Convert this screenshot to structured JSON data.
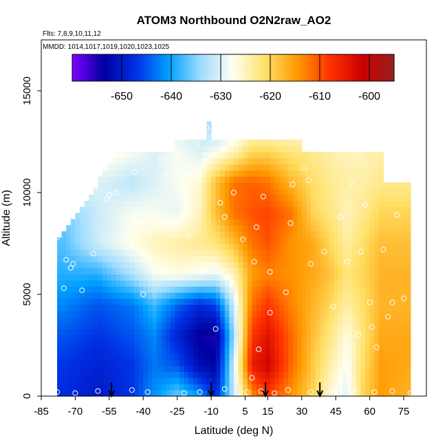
{
  "chart_data": {
    "type": "heatmap",
    "title": "ATOM3 Northbound O2N2raw_AO2",
    "flights_note": "Flts: 7,8,9,10,11,12",
    "dates_note": "MMDD: 1014,1017,1019,1020,1023,1025",
    "xlabel": "Latitude (deg N)",
    "ylabel": "Altitude (m)",
    "xlim": [
      -85,
      85
    ],
    "ylim": [
      0,
      17500
    ],
    "x_ticks": [
      "-85",
      "-70",
      "-55",
      "-40",
      "-25",
      "-10",
      "5",
      "15",
      "30",
      "45",
      "60",
      "75"
    ],
    "y_ticks": [
      "0",
      "5000",
      "10000",
      "15000"
    ],
    "colorbar": {
      "range": [
        -660,
        -595
      ],
      "tick_labels": [
        "-650",
        "-640",
        "-630",
        "-620",
        "-610",
        "-600"
      ],
      "colors": [
        "#7f00ff",
        "#0000a0",
        "#0032e6",
        "#00a0ff",
        "#9fdcff",
        "#fffff0",
        "#ffe066",
        "#ff9900",
        "#ff3300",
        "#cc0000",
        "#992020"
      ]
    },
    "vertical_profile_markers_lat": [
      -54,
      -10,
      14,
      38
    ],
    "field": {
      "lat": [
        -75,
        -60,
        -45,
        -35,
        -25,
        -15,
        -8,
        0,
        8,
        15,
        25,
        35,
        42,
        50,
        57,
        65,
        78
      ],
      "alt": [
        0,
        1500,
        3000,
        4500,
        6000,
        7500,
        9000,
        10500,
        12000,
        13500
      ],
      "values": [
        [
          -648,
          -650,
          -647,
          -641,
          -636,
          -641,
          -648,
          -632,
          -614,
          -609,
          -614,
          -620,
          -626,
          -630,
          -620,
          -615,
          -617
        ],
        [
          -647,
          -649,
          -647,
          -643,
          -645,
          -652,
          -653,
          -631,
          -605,
          -602,
          -611,
          -619,
          -624,
          -628,
          -621,
          -615,
          -616
        ],
        [
          -645,
          -647,
          -645,
          -642,
          -649,
          -654,
          -655,
          -634,
          -608,
          -604,
          -611,
          -618,
          -622,
          -627,
          -622,
          -616,
          -616
        ],
        [
          -642,
          -645,
          -643,
          -638,
          -644,
          -648,
          -646,
          -631,
          -612,
          -608,
          -613,
          -617,
          -620,
          -624,
          -621,
          -617,
          -617
        ],
        [
          -639,
          -639,
          -633,
          -628,
          -627,
          -628,
          -629,
          -625,
          -615,
          -613,
          -614,
          -616,
          -618,
          -622,
          -620,
          -617,
          -617
        ],
        [
          -637,
          -631,
          -627,
          -625,
          -624,
          -623,
          -622,
          -618,
          -612,
          -610,
          -614,
          -616,
          -620,
          -624,
          -621,
          -618,
          -618
        ],
        [
          -636,
          -631,
          -628,
          -628,
          -629,
          -625,
          -618,
          -612,
          -610,
          -609,
          -612,
          -620,
          -622,
          -625,
          -623,
          -620,
          -620
        ],
        [
          -628,
          -630,
          -632,
          -630,
          -628,
          -626,
          -618,
          -612,
          -611,
          -612,
          -617,
          -621,
          -623,
          -624,
          -624,
          -623,
          -623
        ],
        [
          -624,
          -626,
          -628,
          -630,
          -628,
          -630,
          -628,
          -625,
          -620,
          -620,
          -622,
          -623,
          -624,
          -625,
          -625,
          -624,
          -624
        ],
        [
          -630,
          -630,
          -630,
          -630,
          -630,
          -633,
          -634,
          -632,
          -630,
          -630,
          -628,
          -628,
          -628,
          -628,
          -628,
          -628,
          -628
        ]
      ]
    },
    "sample_points": [
      [
        -78,
        7800
      ],
      [
        -74,
        6700
      ],
      [
        -72,
        6300
      ],
      [
        -71,
        6500
      ],
      [
        -75,
        5300
      ],
      [
        -67,
        5200
      ],
      [
        -62,
        7000
      ],
      [
        -56,
        9700
      ],
      [
        -55,
        9900
      ],
      [
        -52,
        10000
      ],
      [
        -47,
        8000
      ],
      [
        -44,
        11000
      ],
      [
        -40,
        5000
      ],
      [
        -36,
        6300
      ],
      [
        -32,
        11600
      ],
      [
        -30,
        10900
      ],
      [
        -28,
        12300
      ],
      [
        -20,
        7900
      ],
      [
        -16,
        12400
      ],
      [
        -12,
        13200
      ],
      [
        -14,
        6100
      ],
      [
        -8,
        3300
      ],
      [
        -6,
        9500
      ],
      [
        -4,
        8800
      ],
      [
        0,
        10000
      ],
      [
        4,
        7700
      ],
      [
        9,
        6600
      ],
      [
        10,
        8300
      ],
      [
        11,
        2300
      ],
      [
        8,
        900
      ],
      [
        13,
        9800
      ],
      [
        16,
        6100
      ],
      [
        16,
        4100
      ],
      [
        23,
        5100
      ],
      [
        25,
        8500
      ],
      [
        26,
        10400
      ],
      [
        31,
        11200
      ],
      [
        33,
        10600
      ],
      [
        34,
        6500
      ],
      [
        38,
        12500
      ],
      [
        40,
        7100
      ],
      [
        44,
        4400
      ],
      [
        47,
        8800
      ],
      [
        50,
        6600
      ],
      [
        52,
        10500
      ],
      [
        55,
        3000
      ],
      [
        56,
        7100
      ],
      [
        58,
        9400
      ],
      [
        60,
        4600
      ],
      [
        61,
        3400
      ],
      [
        63,
        2400
      ],
      [
        66,
        7200
      ],
      [
        68,
        3900
      ],
      [
        70,
        4600
      ],
      [
        72,
        8900
      ],
      [
        75,
        4800
      ],
      [
        -78,
        200
      ],
      [
        -70,
        150
      ],
      [
        -60,
        250
      ],
      [
        -45,
        300
      ],
      [
        -38,
        200
      ],
      [
        -22,
        150
      ],
      [
        -15,
        200
      ],
      [
        -4,
        350
      ],
      [
        6,
        200
      ],
      [
        12,
        250
      ],
      [
        18,
        150
      ],
      [
        24,
        300
      ],
      [
        34,
        200
      ],
      [
        42,
        150
      ],
      [
        48,
        250
      ],
      [
        54,
        300
      ],
      [
        62,
        200
      ],
      [
        70,
        250
      ],
      [
        78,
        150
      ]
    ]
  }
}
